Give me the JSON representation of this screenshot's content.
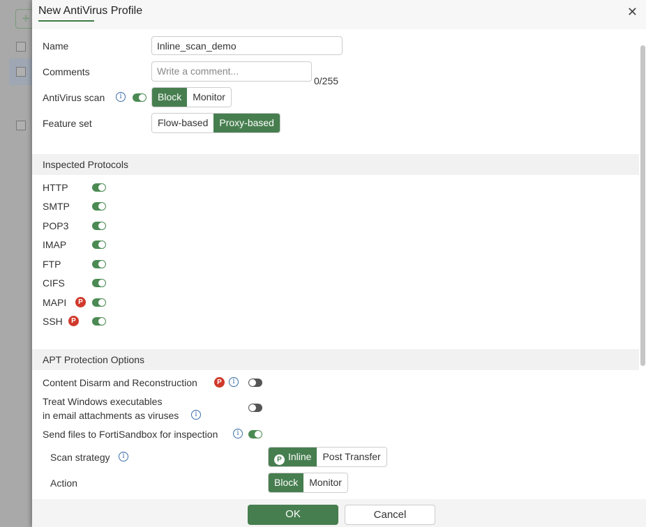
{
  "dialog": {
    "title": "New AntiVirus Profile",
    "close_icon": "close-icon"
  },
  "form": {
    "name_label": "Name",
    "name_value": "Inline_scan_demo",
    "comments_label": "Comments",
    "comments_placeholder": "Write a comment...",
    "comments_count": "0/255",
    "av_scan_label": "AntiVirus scan",
    "av_scan_enabled": true,
    "av_scan_options": [
      "Block",
      "Monitor"
    ],
    "av_scan_selected": "Block",
    "feature_set_label": "Feature set",
    "feature_set_options": [
      "Flow-based",
      "Proxy-based"
    ],
    "feature_set_selected": "Proxy-based"
  },
  "inspected": {
    "title": "Inspected Protocols",
    "protocols": [
      {
        "label": "HTTP",
        "enabled": true
      },
      {
        "label": "SMTP",
        "enabled": true
      },
      {
        "label": "POP3",
        "enabled": true
      },
      {
        "label": "IMAP",
        "enabled": true
      },
      {
        "label": "FTP",
        "enabled": true
      },
      {
        "label": "CIFS",
        "enabled": true
      },
      {
        "label": "MAPI",
        "enabled": true,
        "badge": "P"
      },
      {
        "label": "SSH",
        "enabled": true,
        "badge": "P"
      }
    ]
  },
  "apt": {
    "title": "APT Protection Options",
    "cdr_label": "Content Disarm and Reconstruction",
    "cdr_badge": "P",
    "cdr_enabled": false,
    "treat_label_1": "Treat Windows executables",
    "treat_label_2": "in email attachments as viruses",
    "treat_enabled": false,
    "sandbox_label": "Send files to FortiSandbox for inspection",
    "sandbox_enabled": true,
    "scan_strategy_label": "Scan strategy",
    "scan_strategy_options": [
      "Inline",
      "Post Transfer"
    ],
    "scan_strategy_selected": "Inline",
    "inline_badge": "P",
    "action_label": "Action",
    "action_options": [
      "Block",
      "Monitor"
    ],
    "action_selected": "Block"
  },
  "footer": {
    "ok": "OK",
    "cancel": "Cancel"
  },
  "colors": {
    "accent": "#477e4f",
    "badge": "#d0392b",
    "info": "#3a6ea8"
  }
}
